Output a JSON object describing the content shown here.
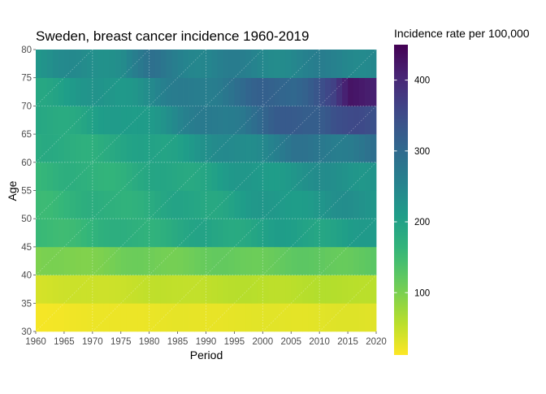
{
  "chart_data": {
    "type": "heatmap",
    "title": "Sweden, breast cancer incidence 1960-2019",
    "xlabel": "Period",
    "ylabel": "Age",
    "xlim": [
      1960,
      2020
    ],
    "ylim": [
      30,
      80
    ],
    "x_ticks": [
      1960,
      1965,
      1970,
      1975,
      1980,
      1985,
      1990,
      1995,
      2000,
      2005,
      2010,
      2015,
      2020
    ],
    "y_ticks": [
      30,
      35,
      40,
      45,
      50,
      55,
      60,
      65,
      70,
      75,
      80
    ],
    "year_start": 1960,
    "year_end": 2019,
    "age_groups": [
      {
        "label": "30-34",
        "y0": 30,
        "y1": 35,
        "anchors": [
          [
            1960,
            18
          ],
          [
            1975,
            24
          ],
          [
            1990,
            27
          ],
          [
            2005,
            30
          ],
          [
            2019,
            32
          ]
        ]
      },
      {
        "label": "35-39",
        "y0": 35,
        "y1": 40,
        "anchors": [
          [
            1960,
            40
          ],
          [
            1975,
            48
          ],
          [
            1990,
            55
          ],
          [
            2005,
            58
          ],
          [
            2019,
            60
          ]
        ]
      },
      {
        "label": "40-44",
        "y0": 40,
        "y1": 45,
        "anchors": [
          [
            1960,
            95
          ],
          [
            1975,
            105
          ],
          [
            1990,
            112
          ],
          [
            2005,
            118
          ],
          [
            2019,
            122
          ]
        ]
      },
      {
        "label": "45-49",
        "y0": 45,
        "y1": 50,
        "anchors": [
          [
            1960,
            150
          ],
          [
            1975,
            170
          ],
          [
            1990,
            190
          ],
          [
            2005,
            200
          ],
          [
            2019,
            205
          ]
        ]
      },
      {
        "label": "50-54",
        "y0": 50,
        "y1": 55,
        "anchors": [
          [
            1960,
            158
          ],
          [
            1975,
            175
          ],
          [
            1990,
            195
          ],
          [
            2005,
            218
          ],
          [
            2019,
            228
          ]
        ]
      },
      {
        "label": "55-59",
        "y0": 55,
        "y1": 60,
        "anchors": [
          [
            1960,
            162
          ],
          [
            1975,
            175
          ],
          [
            1990,
            200
          ],
          [
            2005,
            225
          ],
          [
            2019,
            232
          ]
        ]
      },
      {
        "label": "60-64",
        "y0": 60,
        "y1": 65,
        "anchors": [
          [
            1960,
            175
          ],
          [
            1975,
            185
          ],
          [
            1990,
            225
          ],
          [
            2005,
            272
          ],
          [
            2019,
            280
          ]
        ]
      },
      {
        "label": "65-69",
        "y0": 65,
        "y1": 70,
        "anchors": [
          [
            1960,
            185
          ],
          [
            1975,
            205
          ],
          [
            1990,
            265
          ],
          [
            2005,
            320
          ],
          [
            2012,
            350
          ],
          [
            2019,
            330
          ]
        ]
      },
      {
        "label": "70-74",
        "y0": 70,
        "y1": 75,
        "anchors": [
          [
            1960,
            198
          ],
          [
            1975,
            225
          ],
          [
            1990,
            275
          ],
          [
            2005,
            320
          ],
          [
            2012,
            350
          ],
          [
            2015,
            412
          ],
          [
            2019,
            428
          ]
        ]
      },
      {
        "label": "75-79",
        "y0": 75,
        "y1": 80,
        "anchors": [
          [
            1960,
            225
          ],
          [
            1975,
            245
          ],
          [
            1980,
            275
          ],
          [
            1990,
            255
          ],
          [
            2005,
            250
          ],
          [
            2019,
            255
          ]
        ]
      }
    ],
    "color_scale": {
      "name": "viridis",
      "reversed": true,
      "domain": [
        12,
        450
      ],
      "stops": [
        "#440154",
        "#482878",
        "#3E4A89",
        "#31688E",
        "#26828E",
        "#1F9E89",
        "#35B779",
        "#6DCD59",
        "#B4DE2C",
        "#FDE725"
      ]
    },
    "legend": {
      "title": "Incidence rate per 100,000",
      "position": "right",
      "ticks": [
        100,
        200,
        300,
        400
      ]
    },
    "grid": "dotted, white",
    "cohort_lines": "dotted diagonals"
  }
}
